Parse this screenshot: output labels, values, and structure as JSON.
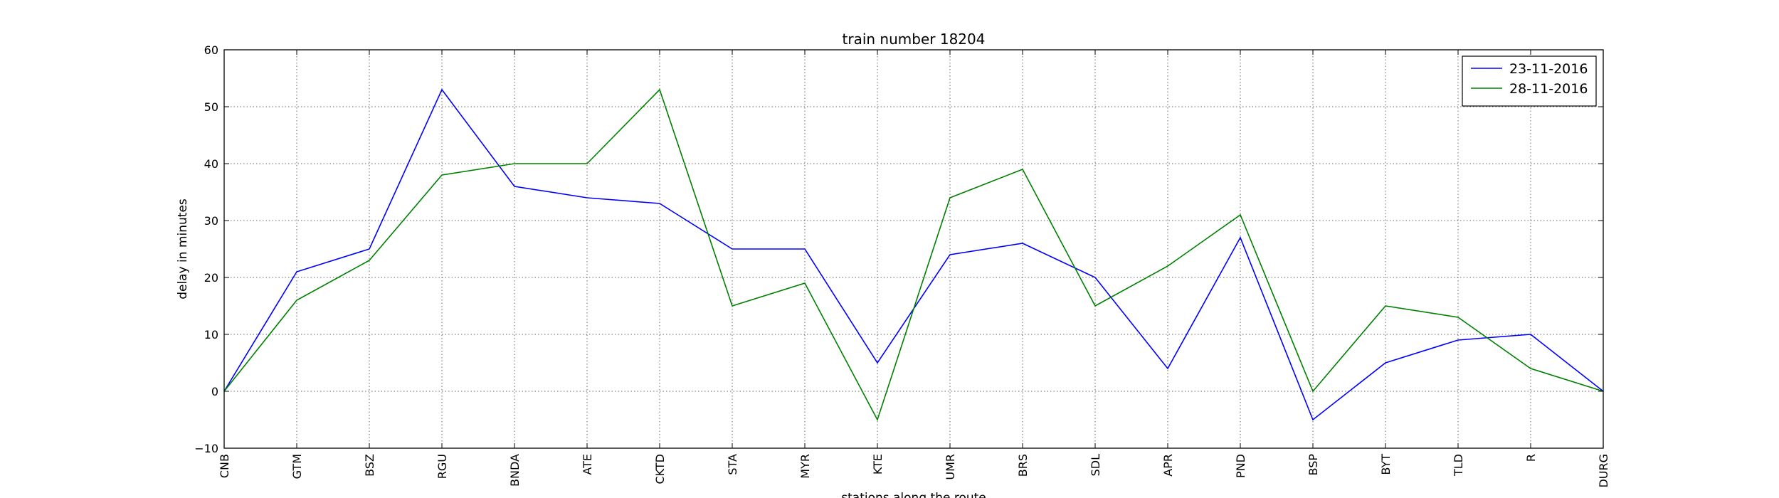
{
  "chart_data": {
    "type": "line",
    "title": "train number 18204",
    "xlabel": "stations along the route",
    "ylabel": "delay in minutes",
    "ylim": [
      -10,
      60
    ],
    "yticks": [
      -10,
      0,
      10,
      20,
      30,
      40,
      50,
      60
    ],
    "categories": [
      "CNB",
      "GTM",
      "BSZ",
      "RGU",
      "BNDA",
      "ATE",
      "CKTD",
      "STA",
      "MYR",
      "KTE",
      "UMR",
      "BRS",
      "SDL",
      "APR",
      "PND",
      "BSP",
      "BYT",
      "TLD",
      "R",
      "DURG"
    ],
    "grid": true,
    "legend_position": "top-right",
    "series": [
      {
        "name": "23-11-2016",
        "color": "#0000ff",
        "values": [
          0,
          21,
          25,
          53,
          36,
          34,
          33,
          25,
          25,
          5,
          24,
          26,
          20,
          4,
          27,
          -5,
          5,
          9,
          10,
          0
        ]
      },
      {
        "name": "28-11-2016",
        "color": "#008000",
        "values": [
          0,
          16,
          23,
          38,
          40,
          40,
          53,
          15,
          19,
          -5,
          34,
          39,
          15,
          22,
          31,
          0,
          15,
          13,
          4,
          0
        ]
      }
    ]
  }
}
